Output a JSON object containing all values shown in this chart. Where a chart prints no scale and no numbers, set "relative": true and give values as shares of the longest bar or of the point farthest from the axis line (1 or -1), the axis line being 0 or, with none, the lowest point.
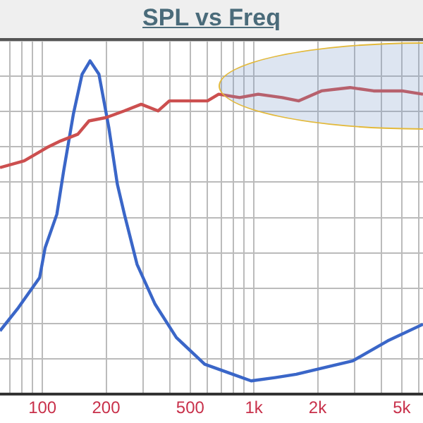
{
  "chart_data": {
    "type": "line",
    "title": "SPL vs Freq",
    "relative": true,
    "log": "x",
    "grid": true,
    "legend": false,
    "marker": "none",
    "line_style": "solid",
    "xlim": [
      63,
      6300
    ],
    "xticks": [
      {
        "value": 70,
        "label": null
      },
      {
        "value": 80,
        "label": null
      },
      {
        "value": 90,
        "label": null
      },
      100,
      200,
      {
        "value": 300,
        "label": null
      },
      {
        "value": 400,
        "label": null
      },
      500,
      {
        "value": 600,
        "label": null
      },
      {
        "value": 700,
        "label": null
      },
      {
        "value": 800,
        "label": null
      },
      {
        "value": 900,
        "label": null
      },
      {
        "value": 1000,
        "label": "1k"
      },
      {
        "value": 2000,
        "label": "2k"
      },
      {
        "value": 3000,
        "label": null
      },
      {
        "value": 4000,
        "label": null
      },
      {
        "value": 5000,
        "label": "5k"
      },
      {
        "value": 6000,
        "label": null
      }
    ],
    "series": [
      {
        "color": "#cc4f4f",
        "x": [
          63,
          82,
          105,
          122,
          147,
          166,
          200,
          244,
          293,
          352,
          398,
          485,
          603,
          681,
          856,
          1047,
          1359,
          1630,
          2086,
          2848,
          3678,
          5012,
          6300
        ],
        "values": [
          0.68,
          0.7,
          0.74,
          0.76,
          0.78,
          0.82,
          0.83,
          0.85,
          0.87,
          0.85,
          0.88,
          0.88,
          0.88,
          0.9,
          0.89,
          0.9,
          0.89,
          0.88,
          0.91,
          0.92,
          0.91,
          0.91,
          0.9
        ]
      },
      {
        "color": "#3a66c8",
        "x": [
          63,
          77,
          97,
          103,
          117,
          126,
          140,
          154,
          168,
          185,
          206,
          226,
          244,
          280,
          341,
          430,
          585,
          794,
          970,
          1259,
          1585,
          2154,
          2931,
          4285,
          6300
        ],
        "values": [
          0.19,
          0.26,
          0.35,
          0.44,
          0.54,
          0.67,
          0.84,
          0.96,
          1,
          0.96,
          0.8,
          0.63,
          0.54,
          0.39,
          0.27,
          0.17,
          0.09,
          0.06,
          0.04,
          0.05,
          0.06,
          0.08,
          0.1,
          0.16,
          0.21
        ]
      }
    ]
  }
}
